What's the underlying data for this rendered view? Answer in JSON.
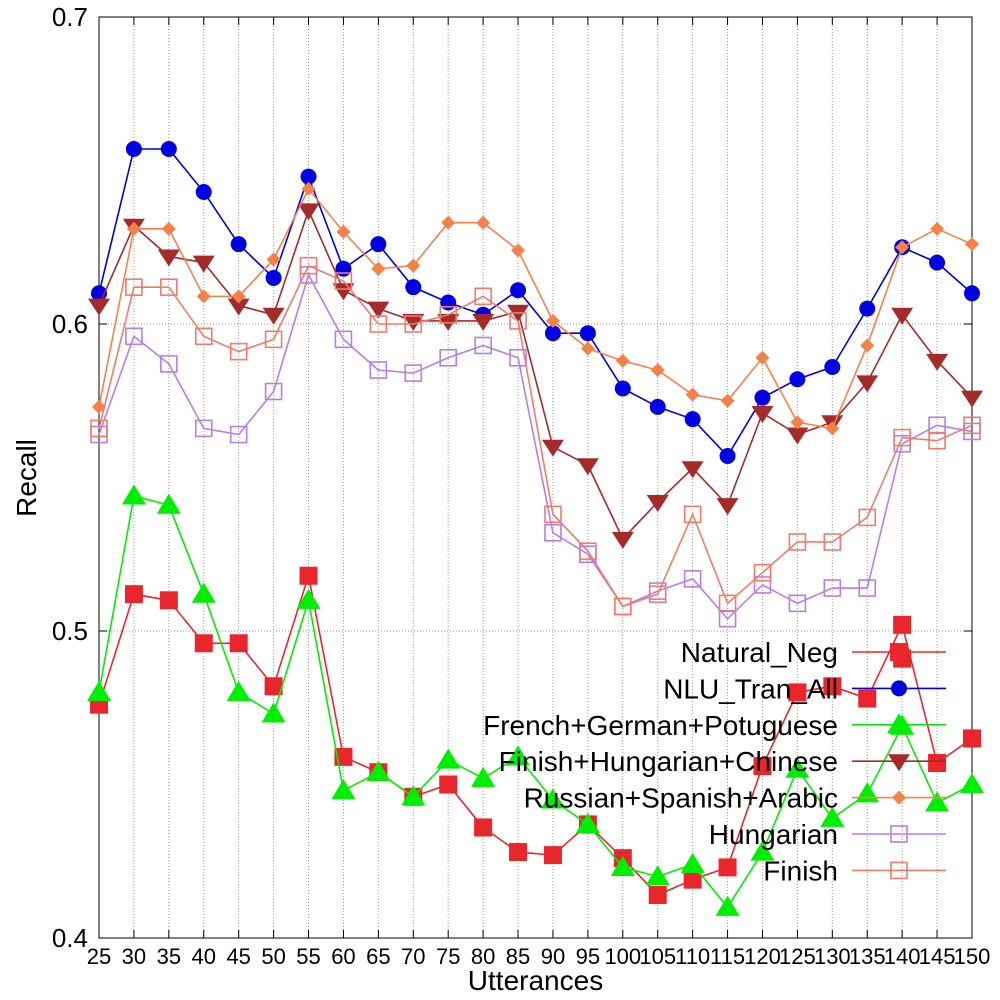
{
  "chart_data": {
    "type": "line",
    "xlabel": "Utterances",
    "ylabel": "Recall",
    "x": [
      25,
      30,
      35,
      40,
      45,
      50,
      55,
      60,
      65,
      70,
      75,
      80,
      85,
      90,
      95,
      100,
      105,
      110,
      115,
      120,
      125,
      130,
      135,
      140,
      145,
      150
    ],
    "ylim": [
      0.4,
      0.7
    ],
    "yticks": [
      "0.4",
      "0.5",
      "0.6",
      "0.7"
    ],
    "ytick_values": [
      0.4,
      0.5,
      0.6,
      0.7
    ],
    "xtick_labels": [
      "25",
      "30",
      "35",
      "40",
      "45",
      "50",
      "55",
      "60",
      "65",
      "70",
      "75",
      "80",
      "85",
      "90",
      "95",
      "100",
      "105",
      "110",
      "115",
      "120",
      "125",
      "130",
      "135",
      "140",
      "145",
      "150"
    ],
    "grid": true,
    "legend_position": "bottom-right",
    "series": [
      {
        "name": "Natural_Neg",
        "color": "#e8262b",
        "marker": "square-filled",
        "values": [
          0.476,
          0.512,
          0.51,
          0.496,
          0.496,
          0.482,
          0.518,
          0.459,
          0.454,
          0.446,
          0.45,
          0.436,
          0.428,
          0.427,
          0.437,
          0.426,
          0.414,
          0.419,
          0.423,
          0.456,
          0.48,
          0.482,
          0.478,
          0.502,
          0.457,
          0.465
        ],
        "extra_points": [
          [
            140,
            0.491
          ]
        ]
      },
      {
        "name": "NLU_Tran_All",
        "color": "#0000e0",
        "marker": "circle-filled",
        "values": [
          0.61,
          0.657,
          0.657,
          0.643,
          0.626,
          0.615,
          0.648,
          0.618,
          0.626,
          0.612,
          0.607,
          0.603,
          0.611,
          0.597,
          0.597,
          0.579,
          0.573,
          0.569,
          0.557,
          0.576,
          0.582,
          0.586,
          0.605,
          0.625,
          0.62,
          0.61
        ]
      },
      {
        "name": "French+German+Potuguese",
        "color": "#00ee00",
        "marker": "triangle-up-filled",
        "values": [
          0.48,
          0.544,
          0.541,
          0.512,
          0.48,
          0.473,
          0.51,
          0.448,
          0.454,
          0.446,
          0.458,
          0.452,
          0.459,
          0.445,
          0.437,
          0.423,
          0.42,
          0.424,
          0.41,
          0.428,
          0.455,
          0.439,
          0.447,
          0.469,
          0.444,
          0.45
        ]
      },
      {
        "name": "Finish+Hungarian+Chinese",
        "color": "#a52a2a",
        "marker": "triangle-down-filled",
        "values": [
          0.606,
          0.632,
          0.622,
          0.62,
          0.606,
          0.603,
          0.637,
          0.611,
          0.605,
          0.601,
          0.601,
          0.601,
          0.604,
          0.56,
          0.554,
          0.53,
          0.542,
          0.553,
          0.541,
          0.571,
          0.564,
          0.568,
          0.581,
          0.603,
          0.588,
          0.576
        ]
      },
      {
        "name": "Russian+Spanish+Arabic",
        "color": "#f4804a",
        "marker": "diamond-filled",
        "values": [
          0.573,
          0.631,
          0.631,
          0.609,
          0.609,
          0.621,
          0.644,
          0.63,
          0.618,
          0.619,
          0.633,
          0.633,
          0.624,
          0.601,
          0.592,
          0.588,
          0.585,
          0.577,
          0.575,
          0.589,
          0.568,
          0.566,
          0.593,
          0.625,
          0.631,
          0.626
        ]
      },
      {
        "name": "Hungarian",
        "color": "#b77ee8",
        "marker": "square-open",
        "values": [
          0.564,
          0.596,
          0.587,
          0.566,
          0.564,
          0.578,
          0.616,
          0.595,
          0.585,
          0.584,
          0.589,
          0.593,
          0.589,
          0.532,
          0.525,
          0.508,
          0.513,
          0.517,
          0.504,
          0.515,
          0.509,
          0.514,
          0.514,
          0.561,
          0.567,
          0.565
        ]
      },
      {
        "name": "Finish",
        "color": "#f07b6a",
        "marker": "square-open",
        "values": [
          0.566,
          0.612,
          0.612,
          0.596,
          0.591,
          0.595,
          0.619,
          0.614,
          0.6,
          0.6,
          0.603,
          0.609,
          0.601,
          0.538,
          0.526,
          0.508,
          0.512,
          0.538,
          0.509,
          0.519,
          0.529,
          0.529,
          0.537,
          0.563,
          0.562,
          0.567
        ]
      }
    ]
  }
}
